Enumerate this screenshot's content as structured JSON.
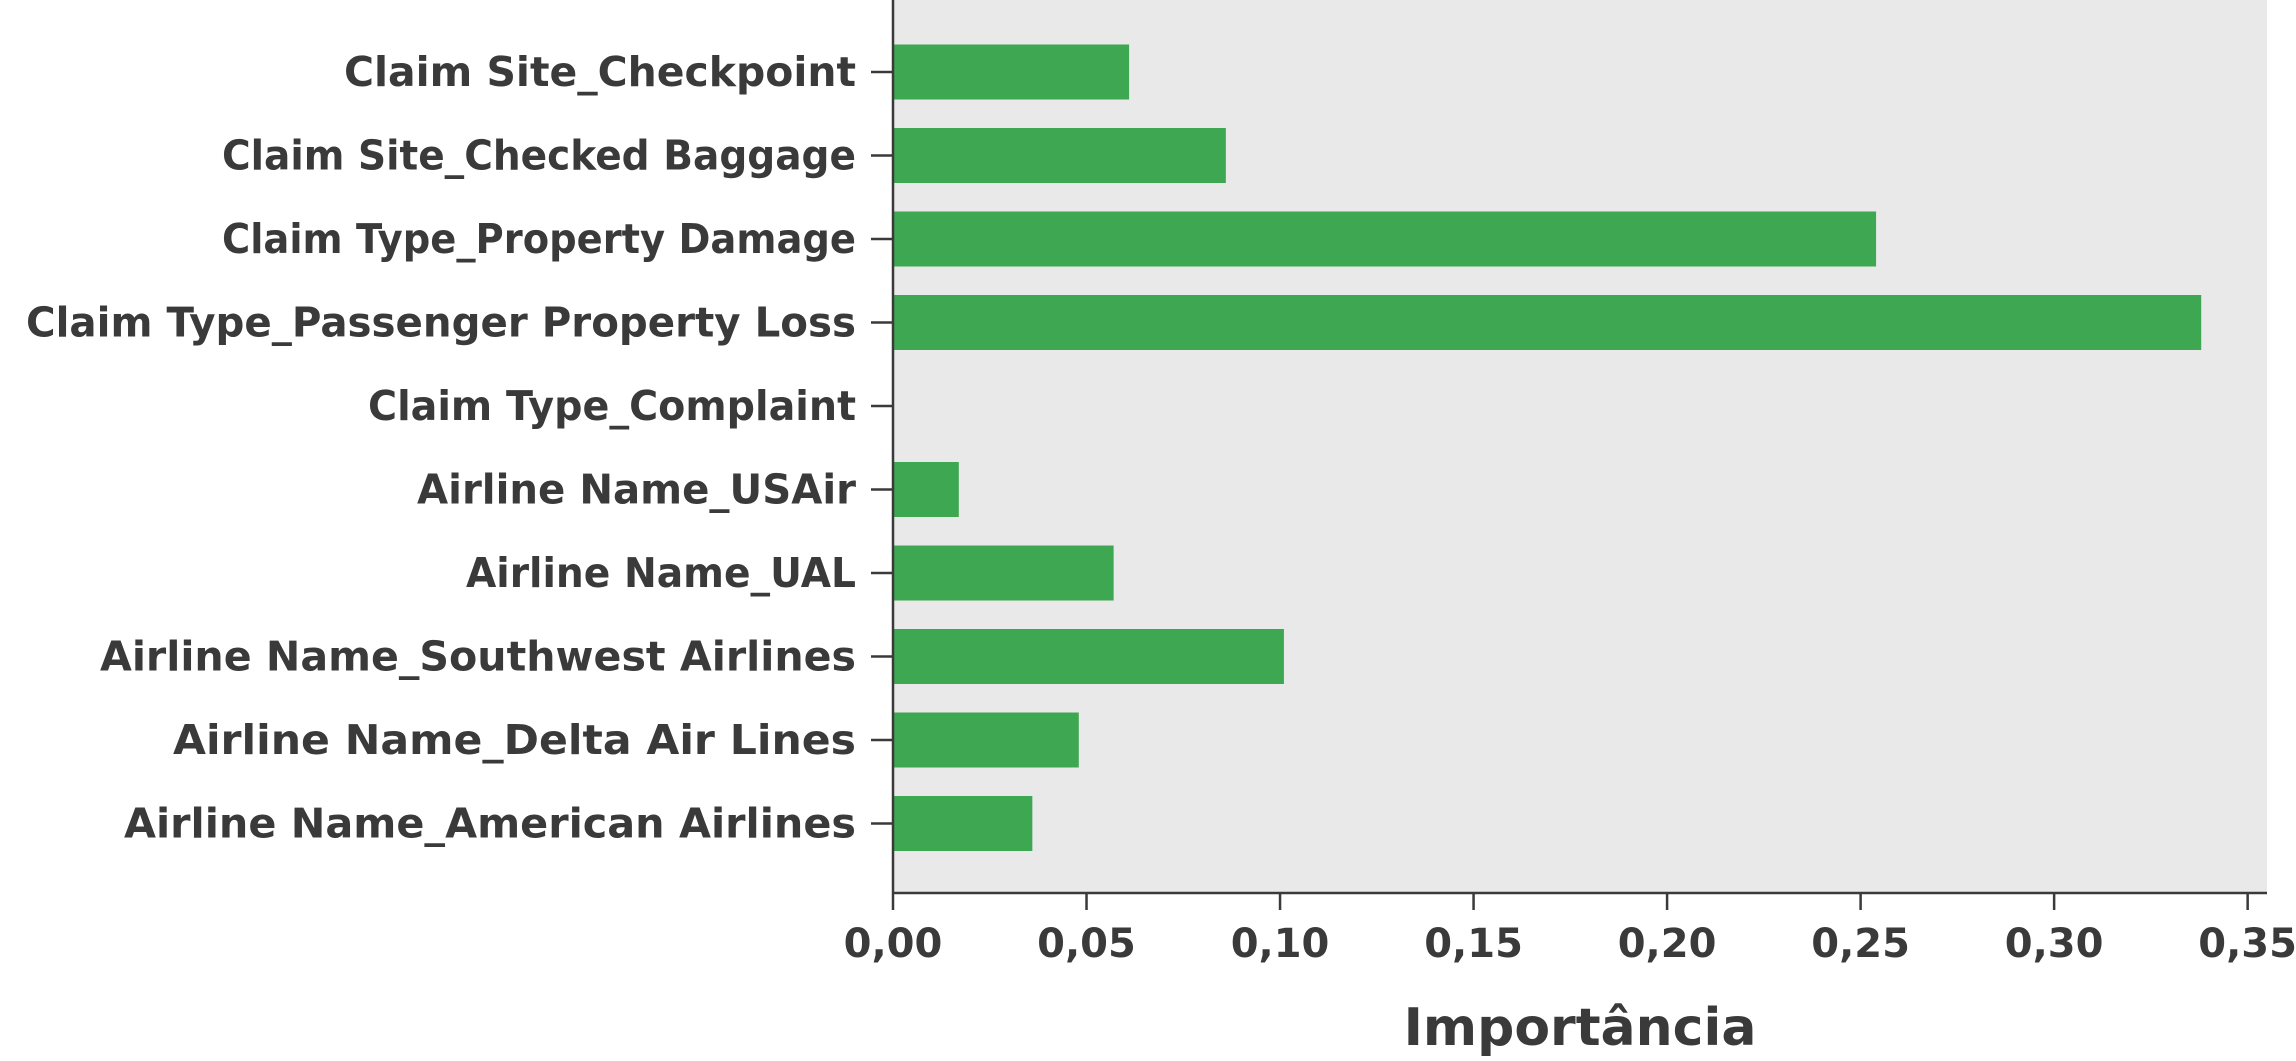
{
  "chart_data": {
    "type": "bar",
    "orientation": "horizontal",
    "categories": [
      "Claim Site_Checkpoint",
      "Claim Site_Checked Baggage",
      "Claim Type_Property Damage",
      "Claim Type_Passenger Property Loss",
      "Claim Type_Complaint",
      "Airline Name_USAir",
      "Airline Name_UAL",
      "Airline Name_Southwest Airlines",
      "Airline Name_Delta Air Lines",
      "Airline Name_American Airlines"
    ],
    "values": [
      0.061,
      0.086,
      0.254,
      0.338,
      0.0,
      0.017,
      0.057,
      0.101,
      0.048,
      0.036
    ],
    "xlabel": "Importância",
    "ylabel": "",
    "xlim": [
      0,
      0.355
    ],
    "xticks": [
      0,
      0.05,
      0.1,
      0.15,
      0.2,
      0.25,
      0.3,
      0.35
    ],
    "xtick_labels": [
      "0,00",
      "0,05",
      "0,10",
      "0,15",
      "0,20",
      "0,25",
      "0,30",
      "0,35"
    ],
    "bar_color": "#3da751",
    "plot_background": "#e9e9e9",
    "grid": false
  }
}
